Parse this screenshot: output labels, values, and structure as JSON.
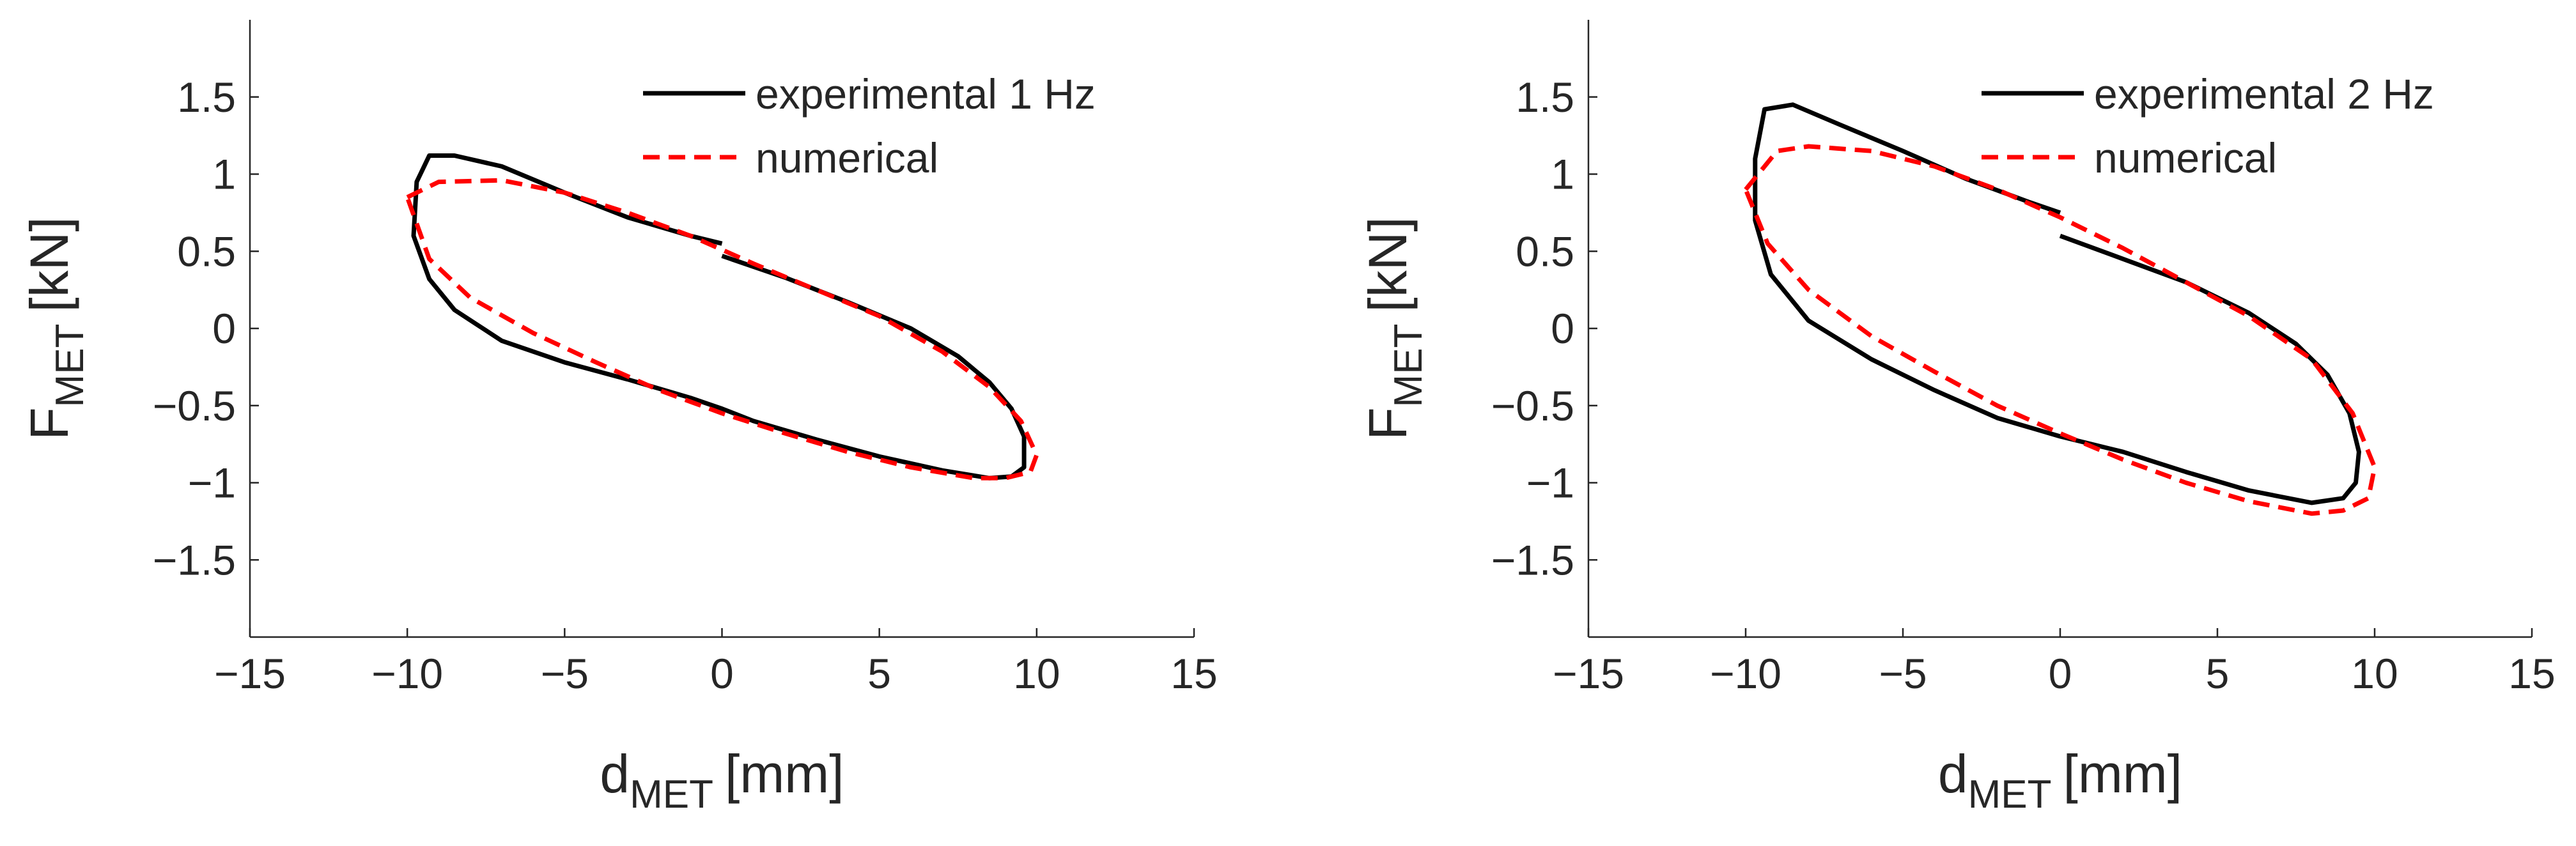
{
  "chart_data": [
    {
      "type": "line",
      "xlabel": {
        "main": "d",
        "sub": "MET",
        "unit": "[mm]"
      },
      "ylabel": {
        "main": "F",
        "sub": "MET",
        "unit": "[kN]"
      },
      "xlim": [
        -15,
        15
      ],
      "ylim": [
        -2,
        2
      ],
      "xticks": [
        {
          "value": -15,
          "label": "−15"
        },
        {
          "value": -10,
          "label": "−10"
        },
        {
          "value": -5,
          "label": "−5"
        },
        0,
        5,
        10,
        15
      ],
      "yticks": [
        {
          "value": -1.5,
          "label": "−1.5"
        },
        {
          "value": -1,
          "label": "−1"
        },
        {
          "value": -0.5,
          "label": "−0.5"
        },
        0,
        0.5,
        1,
        1.5
      ],
      "legend": "upper right",
      "series": [
        {
          "name": "experimental 1 Hz",
          "color": "#000000",
          "dashed": false,
          "x": [
            0,
            2,
            4,
            6,
            7.5,
            8.5,
            9.2,
            9.6,
            9.6,
            9.2,
            8.5,
            7,
            5,
            3,
            1,
            0,
            -1,
            -3,
            -5,
            -7,
            -8.5,
            -9.3,
            -9.8,
            -9.7,
            -9.3,
            -8.5,
            -7,
            -5,
            -3,
            -1,
            0
          ],
          "values": [
            0.47,
            0.33,
            0.17,
            0.0,
            -0.18,
            -0.35,
            -0.52,
            -0.7,
            -0.9,
            -0.96,
            -0.97,
            -0.92,
            -0.83,
            -0.72,
            -0.6,
            -0.52,
            -0.45,
            -0.33,
            -0.22,
            -0.08,
            0.12,
            0.32,
            0.6,
            0.95,
            1.12,
            1.12,
            1.05,
            0.88,
            0.72,
            0.6,
            0.55
          ]
        },
        {
          "name": "numerical",
          "color": "#ff0000",
          "dashed": true,
          "x": [
            -10,
            -9,
            -7,
            -5,
            -3,
            -1,
            1,
            3,
            5,
            7,
            8.5,
            9.5,
            10,
            9.8,
            9,
            8,
            6,
            4,
            2,
            0,
            -2,
            -4,
            -6,
            -8,
            -9.3,
            -10
          ],
          "values": [
            0.85,
            0.95,
            0.96,
            0.88,
            0.75,
            0.6,
            0.42,
            0.25,
            0.08,
            -0.15,
            -0.38,
            -0.6,
            -0.82,
            -0.93,
            -0.97,
            -0.97,
            -0.9,
            -0.8,
            -0.68,
            -0.55,
            -0.4,
            -0.22,
            -0.03,
            0.2,
            0.45,
            0.85
          ]
        }
      ]
    },
    {
      "type": "line",
      "xlabel": {
        "main": "d",
        "sub": "MET",
        "unit": "[mm]"
      },
      "ylabel": {
        "main": "F",
        "sub": "MET",
        "unit": "[kN]"
      },
      "xlim": [
        -15,
        15
      ],
      "ylim": [
        -2,
        2
      ],
      "xticks": [
        {
          "value": -15,
          "label": "−15"
        },
        {
          "value": -10,
          "label": "−10"
        },
        {
          "value": -5,
          "label": "−5"
        },
        0,
        5,
        10,
        15
      ],
      "yticks": [
        {
          "value": -1.5,
          "label": "−1.5"
        },
        {
          "value": -1,
          "label": "−1"
        },
        {
          "value": -0.5,
          "label": "−0.5"
        },
        0,
        0.5,
        1,
        1.5
      ],
      "legend": "upper right",
      "series": [
        {
          "name": "experimental 2 Hz",
          "color": "#000000",
          "dashed": false,
          "x": [
            0,
            2,
            4,
            6,
            7.5,
            8.5,
            9.2,
            9.5,
            9.4,
            9,
            8,
            6,
            4,
            2,
            0,
            -2,
            -4,
            -6,
            -8,
            -9.2,
            -9.7,
            -9.7,
            -9.4,
            -8.5,
            -7,
            -5,
            -3,
            -1,
            0
          ],
          "values": [
            0.6,
            0.45,
            0.3,
            0.1,
            -0.1,
            -0.3,
            -0.55,
            -0.8,
            -1.0,
            -1.1,
            -1.13,
            -1.05,
            -0.93,
            -0.8,
            -0.7,
            -0.58,
            -0.4,
            -0.2,
            0.05,
            0.35,
            0.7,
            1.1,
            1.42,
            1.45,
            1.32,
            1.15,
            0.97,
            0.82,
            0.75
          ]
        },
        {
          "name": "numerical",
          "color": "#ff0000",
          "dashed": true,
          "x": [
            -10,
            -9,
            -8,
            -6,
            -4,
            -2,
            0,
            2,
            4,
            6,
            8,
            9.3,
            10,
            9.8,
            9,
            8,
            6,
            4,
            2,
            0,
            -2,
            -4,
            -6,
            -8,
            -9.3,
            -10
          ],
          "values": [
            0.9,
            1.15,
            1.18,
            1.15,
            1.05,
            0.9,
            0.72,
            0.52,
            0.3,
            0.08,
            -0.2,
            -0.55,
            -0.9,
            -1.1,
            -1.18,
            -1.2,
            -1.12,
            -1.0,
            -0.85,
            -0.68,
            -0.5,
            -0.28,
            -0.05,
            0.25,
            0.55,
            0.9
          ]
        }
      ]
    }
  ]
}
